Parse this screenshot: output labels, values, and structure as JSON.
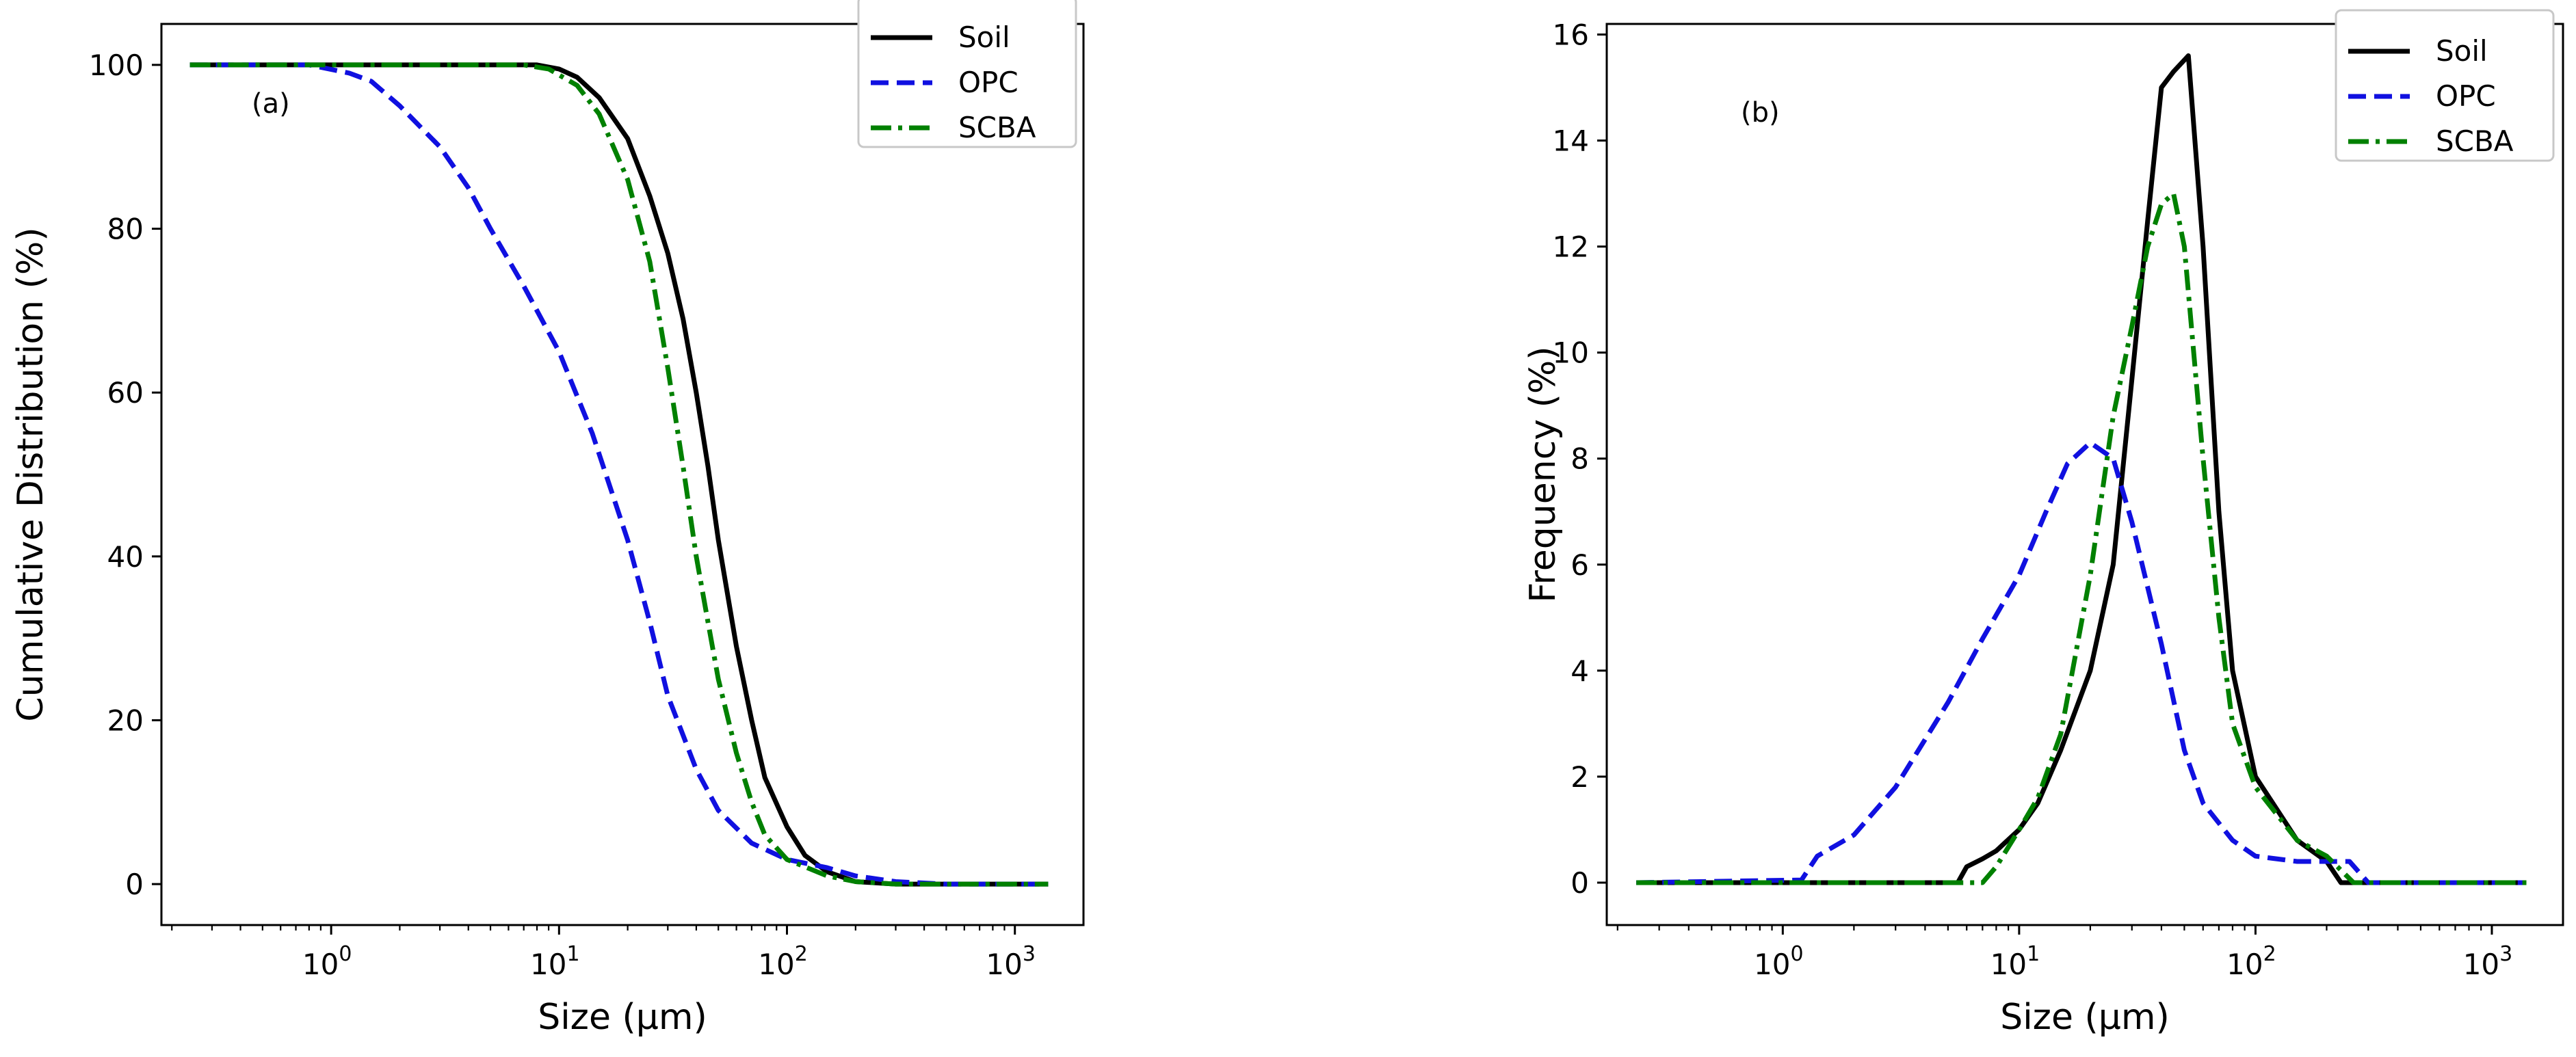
{
  "chart_data": [
    {
      "type": "line",
      "panel_label": "(a)",
      "title": "",
      "xlabel": "Size (μm)",
      "ylabel": "Cumulative Distribution (%)",
      "xscale": "log",
      "xlim": [
        0.18,
        2000
      ],
      "ylim": [
        -5,
        105
      ],
      "xticks": [
        1,
        10,
        100,
        1000
      ],
      "xtick_labels": [
        "10^0",
        "10^1",
        "10^2",
        "10^3"
      ],
      "yticks": [
        0,
        20,
        40,
        60,
        80,
        100
      ],
      "ytick_labels": [
        "0",
        "20",
        "40",
        "60",
        "80",
        "100"
      ],
      "legend": {
        "placement": "top-right",
        "entries": [
          "Soil",
          "OPC",
          "SCBA"
        ]
      },
      "series": [
        {
          "name": "Soil",
          "color": "#000000",
          "style": "solid",
          "points": [
            [
              0.24,
              100
            ],
            [
              5,
              100
            ],
            [
              8,
              100
            ],
            [
              10,
              99.5
            ],
            [
              12,
              98.5
            ],
            [
              15,
              96
            ],
            [
              20,
              91
            ],
            [
              25,
              84
            ],
            [
              30,
              77
            ],
            [
              35,
              69
            ],
            [
              40,
              60
            ],
            [
              45,
              51
            ],
            [
              50,
              42
            ],
            [
              60,
              29
            ],
            [
              70,
              20
            ],
            [
              80,
              13
            ],
            [
              100,
              7
            ],
            [
              120,
              3.5
            ],
            [
              150,
              1.5
            ],
            [
              200,
              0.3
            ],
            [
              300,
              0
            ],
            [
              1400,
              0
            ]
          ]
        },
        {
          "name": "OPC",
          "color": "#1010e0",
          "style": "dashed",
          "points": [
            [
              0.24,
              100
            ],
            [
              0.8,
              100
            ],
            [
              1.2,
              99
            ],
            [
              1.5,
              98
            ],
            [
              2,
              95
            ],
            [
              3,
              90
            ],
            [
              4,
              85
            ],
            [
              5,
              80
            ],
            [
              7,
              73
            ],
            [
              10,
              65
            ],
            [
              14,
              55
            ],
            [
              20,
              42
            ],
            [
              25,
              32
            ],
            [
              30,
              23
            ],
            [
              40,
              14
            ],
            [
              50,
              9
            ],
            [
              70,
              5
            ],
            [
              100,
              3
            ],
            [
              150,
              2
            ],
            [
              200,
              1
            ],
            [
              300,
              0.3
            ],
            [
              500,
              0
            ],
            [
              1400,
              0
            ]
          ]
        },
        {
          "name": "SCBA",
          "color": "#008000",
          "style": "dashdot",
          "points": [
            [
              0.24,
              100
            ],
            [
              7,
              100
            ],
            [
              9,
              99.5
            ],
            [
              12,
              97.5
            ],
            [
              15,
              94
            ],
            [
              20,
              86
            ],
            [
              25,
              76
            ],
            [
              30,
              63
            ],
            [
              35,
              51
            ],
            [
              40,
              40
            ],
            [
              45,
              32
            ],
            [
              50,
              25
            ],
            [
              60,
              16
            ],
            [
              70,
              10
            ],
            [
              80,
              6
            ],
            [
              100,
              3
            ],
            [
              150,
              1
            ],
            [
              200,
              0.3
            ],
            [
              300,
              0
            ],
            [
              1400,
              0
            ]
          ]
        }
      ]
    },
    {
      "type": "line",
      "panel_label": "(b)",
      "title": "",
      "xlabel": "Size (μm)",
      "ylabel": "Frequency (%)",
      "xscale": "log",
      "xlim": [
        0.18,
        2000
      ],
      "ylim": [
        -0.8,
        16.2
      ],
      "xticks": [
        1,
        10,
        100,
        1000
      ],
      "xtick_labels": [
        "10^0",
        "10^1",
        "10^2",
        "10^3"
      ],
      "yticks": [
        0,
        2,
        4,
        6,
        8,
        10,
        12,
        14,
        16
      ],
      "ytick_labels": [
        "0",
        "2",
        "4",
        "6",
        "8",
        "10",
        "12",
        "14",
        "16"
      ],
      "legend": {
        "placement": "top-right",
        "entries": [
          "Soil",
          "OPC",
          "SCBA"
        ]
      },
      "series": [
        {
          "name": "Soil",
          "color": "#000000",
          "style": "solid",
          "points": [
            [
              0.24,
              0
            ],
            [
              5.5,
              0
            ],
            [
              6,
              0.3
            ],
            [
              7,
              0.45
            ],
            [
              8,
              0.6
            ],
            [
              10,
              1
            ],
            [
              12,
              1.5
            ],
            [
              15,
              2.5
            ],
            [
              20,
              4
            ],
            [
              25,
              6
            ],
            [
              30,
              9.5
            ],
            [
              35,
              12.5
            ],
            [
              40,
              15
            ],
            [
              45,
              15.3
            ],
            [
              52,
              15.6
            ],
            [
              60,
              12
            ],
            [
              70,
              7
            ],
            [
              80,
              4
            ],
            [
              100,
              2
            ],
            [
              150,
              0.8
            ],
            [
              200,
              0.4
            ],
            [
              230,
              0
            ],
            [
              1400,
              0
            ]
          ]
        },
        {
          "name": "OPC",
          "color": "#1010e0",
          "style": "dashed",
          "points": [
            [
              0.24,
              0
            ],
            [
              1.2,
              0.05
            ],
            [
              1.4,
              0.5
            ],
            [
              2,
              0.9
            ],
            [
              3,
              1.8
            ],
            [
              5,
              3.4
            ],
            [
              7,
              4.6
            ],
            [
              10,
              5.8
            ],
            [
              13,
              7
            ],
            [
              16,
              7.9
            ],
            [
              20,
              8.3
            ],
            [
              25,
              8
            ],
            [
              30,
              6.8
            ],
            [
              40,
              4.5
            ],
            [
              50,
              2.5
            ],
            [
              60,
              1.5
            ],
            [
              80,
              0.8
            ],
            [
              100,
              0.5
            ],
            [
              150,
              0.4
            ],
            [
              250,
              0.4
            ],
            [
              300,
              0
            ],
            [
              1400,
              0
            ]
          ]
        },
        {
          "name": "SCBA",
          "color": "#008000",
          "style": "dashdot",
          "points": [
            [
              0.24,
              0
            ],
            [
              7,
              0
            ],
            [
              8,
              0.3
            ],
            [
              10,
              1
            ],
            [
              12,
              1.6
            ],
            [
              15,
              2.8
            ],
            [
              20,
              5.8
            ],
            [
              25,
              8.8
            ],
            [
              30,
              10.5
            ],
            [
              35,
              12
            ],
            [
              40,
              12.8
            ],
            [
              45,
              13
            ],
            [
              50,
              12
            ],
            [
              60,
              8
            ],
            [
              70,
              5
            ],
            [
              80,
              3
            ],
            [
              100,
              1.8
            ],
            [
              150,
              0.8
            ],
            [
              200,
              0.5
            ],
            [
              260,
              0
            ],
            [
              1400,
              0
            ]
          ]
        }
      ]
    }
  ]
}
